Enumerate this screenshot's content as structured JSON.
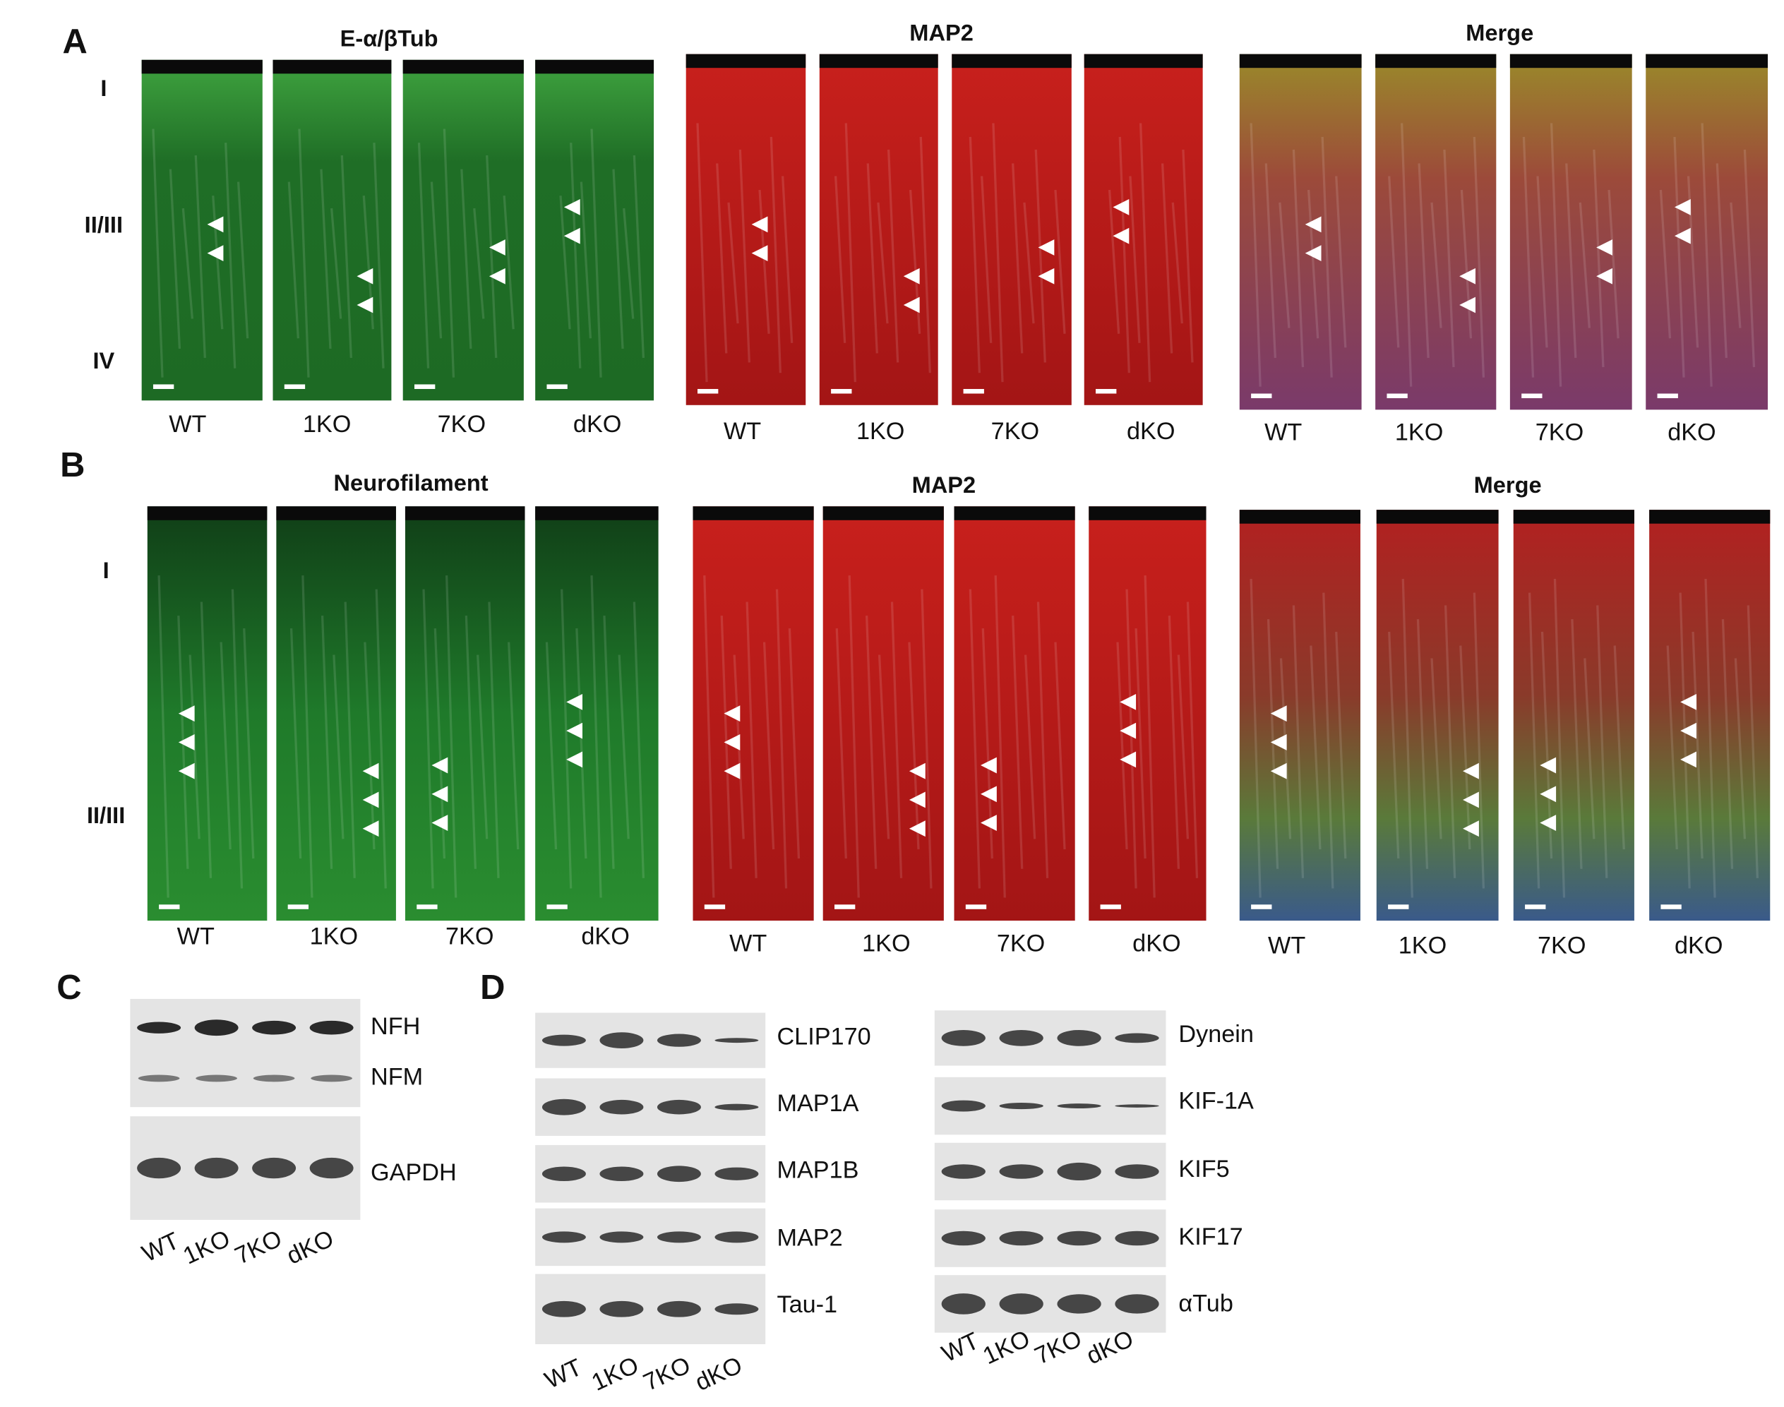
{
  "panels": {
    "A": {
      "letter": "A",
      "layers": [
        "I",
        "II/III",
        "IV"
      ],
      "groups": [
        {
          "title": "E-α/βTub",
          "genotypes": [
            "WT",
            "1KO",
            "7KO",
            "dKO"
          ]
        },
        {
          "title": "MAP2",
          "genotypes": [
            "WT",
            "1KO",
            "7KO",
            "dKO"
          ]
        },
        {
          "title": "Merge",
          "genotypes": [
            "WT",
            "1KO",
            "7KO",
            "dKO"
          ]
        }
      ]
    },
    "B": {
      "letter": "B",
      "layers": [
        "I",
        "II/III"
      ],
      "groups": [
        {
          "title": "Neurofilament",
          "genotypes": [
            "WT",
            "1KO",
            "7KO",
            "dKO"
          ]
        },
        {
          "title": "MAP2",
          "genotypes": [
            "WT",
            "1KO",
            "7KO",
            "dKO"
          ]
        },
        {
          "title": "Merge",
          "genotypes": [
            "WT",
            "1KO",
            "7KO",
            "dKO"
          ]
        }
      ]
    },
    "C": {
      "letter": "C",
      "bands": [
        "NFH",
        "NFM",
        "GAPDH"
      ],
      "lanes": [
        "WT",
        "1KO",
        "7KO",
        "dKO"
      ]
    },
    "D": {
      "letter": "D",
      "blots": [
        {
          "bands": [
            "CLIP170",
            "MAP1A",
            "MAP1B",
            "MAP2",
            "Tau-1"
          ],
          "lanes": [
            "WT",
            "1KO",
            "7KO",
            "dKO"
          ]
        },
        {
          "bands": [
            "Dynein",
            "KIF-1A",
            "KIF5",
            "KIF17",
            "αTub"
          ],
          "lanes": [
            "WT",
            "1KO",
            "7KO",
            "dKO"
          ]
        }
      ]
    }
  }
}
